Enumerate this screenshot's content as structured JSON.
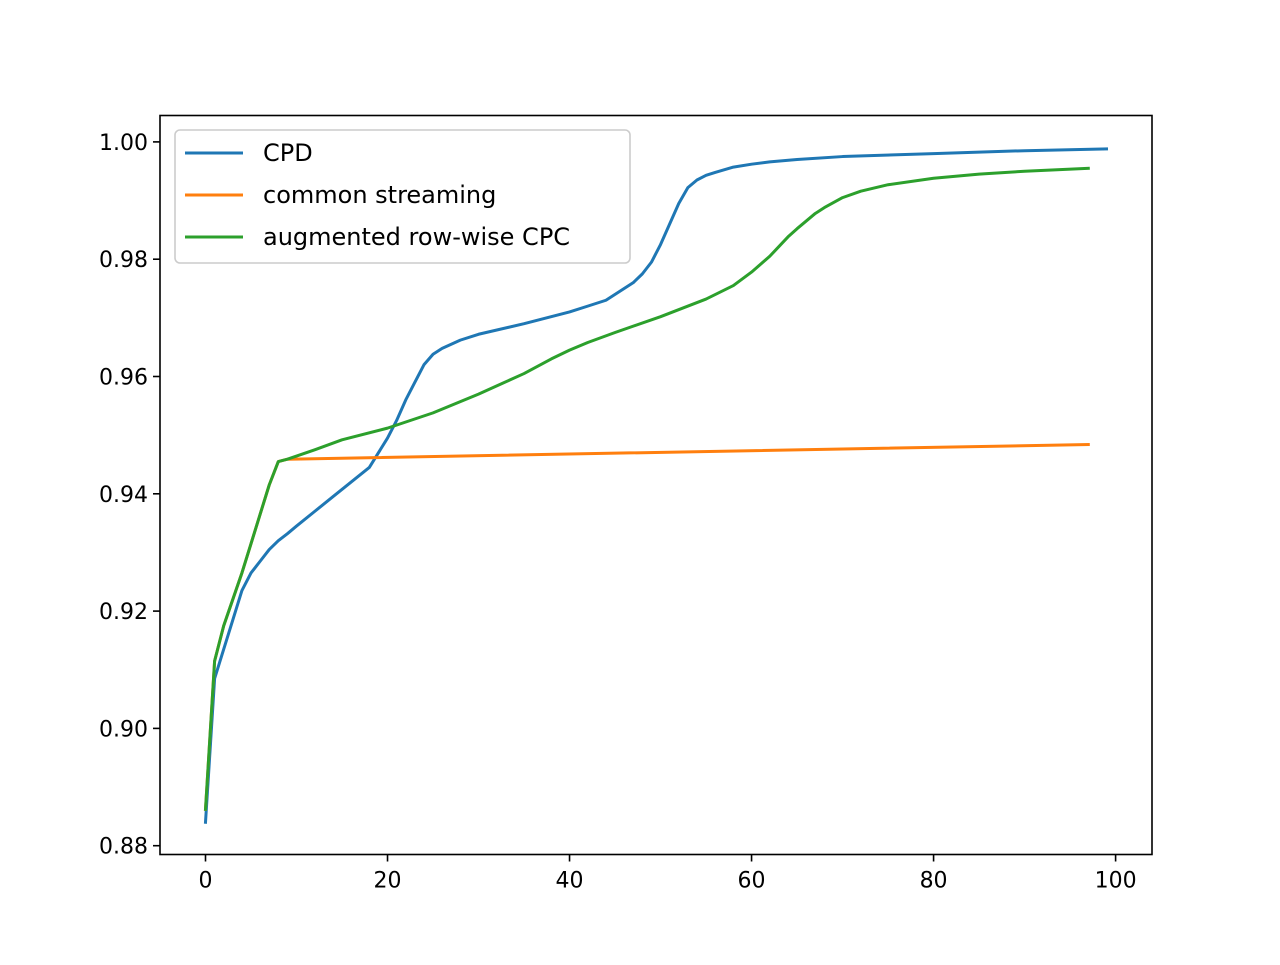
{
  "chart_data": {
    "type": "line",
    "title": "",
    "xlabel": "",
    "ylabel": "",
    "xlim": [
      -5,
      104
    ],
    "ylim": [
      0.8785,
      1.0045
    ],
    "x_ticks": [
      0,
      20,
      40,
      60,
      80,
      100
    ],
    "y_ticks": [
      0.88,
      0.9,
      0.92,
      0.94,
      0.96,
      0.98,
      1.0
    ],
    "x_tick_labels": [
      "0",
      "20",
      "40",
      "60",
      "80",
      "100"
    ],
    "y_tick_labels": [
      "0.88",
      "0.90",
      "0.92",
      "0.94",
      "0.96",
      "0.98",
      "1.00"
    ],
    "grid": false,
    "legend_position": "top-left",
    "series": [
      {
        "name": "CPD",
        "color": "#1f77b4",
        "x": [
          0,
          1,
          2,
          3,
          4,
          5,
          6,
          7,
          8,
          9,
          10,
          12,
          14,
          16,
          18,
          20,
          21,
          22,
          23,
          24,
          25,
          26,
          27,
          28,
          30,
          35,
          40,
          42,
          44,
          45,
          46,
          47,
          48,
          49,
          50,
          51,
          52,
          53,
          54,
          55,
          56,
          58,
          60,
          62,
          65,
          70,
          80,
          90,
          99
        ],
        "y": [
          0.884,
          0.9085,
          0.9135,
          0.9185,
          0.9235,
          0.9265,
          0.9285,
          0.9305,
          0.932,
          0.9332,
          0.9345,
          0.937,
          0.9395,
          0.942,
          0.9445,
          0.9495,
          0.9525,
          0.956,
          0.959,
          0.962,
          0.9638,
          0.9648,
          0.9655,
          0.9662,
          0.9672,
          0.969,
          0.971,
          0.972,
          0.973,
          0.974,
          0.975,
          0.976,
          0.9775,
          0.9795,
          0.9825,
          0.986,
          0.9895,
          0.9922,
          0.9935,
          0.9943,
          0.9948,
          0.9957,
          0.9962,
          0.9966,
          0.997,
          0.9975,
          0.998,
          0.9985,
          0.9988
        ]
      },
      {
        "name": "common streaming",
        "color": "#ff7f0e",
        "x": [
          0,
          1,
          2,
          3,
          4,
          5,
          6,
          7,
          8,
          9,
          97
        ],
        "y": [
          0.8862,
          0.9115,
          0.9175,
          0.922,
          0.9265,
          0.9315,
          0.9365,
          0.9415,
          0.9455,
          0.9459,
          0.9484
        ]
      },
      {
        "name": "augmented row-wise CPC",
        "color": "#2ca02c",
        "x": [
          0,
          1,
          2,
          3,
          4,
          5,
          6,
          7,
          8,
          9,
          12,
          15,
          20,
          25,
          30,
          35,
          38,
          40,
          42,
          45,
          50,
          55,
          58,
          60,
          62,
          64,
          65,
          66,
          67,
          68,
          70,
          72,
          75,
          80,
          85,
          90,
          97
        ],
        "y": [
          0.8862,
          0.9115,
          0.9175,
          0.922,
          0.9265,
          0.9315,
          0.9365,
          0.9415,
          0.9455,
          0.9459,
          0.9475,
          0.9492,
          0.9512,
          0.9538,
          0.957,
          0.9605,
          0.963,
          0.9645,
          0.9658,
          0.9675,
          0.9702,
          0.9732,
          0.9755,
          0.9778,
          0.9805,
          0.9838,
          0.9852,
          0.9865,
          0.9878,
          0.9888,
          0.9905,
          0.9916,
          0.9927,
          0.9938,
          0.9945,
          0.995,
          0.9955
        ]
      }
    ]
  }
}
